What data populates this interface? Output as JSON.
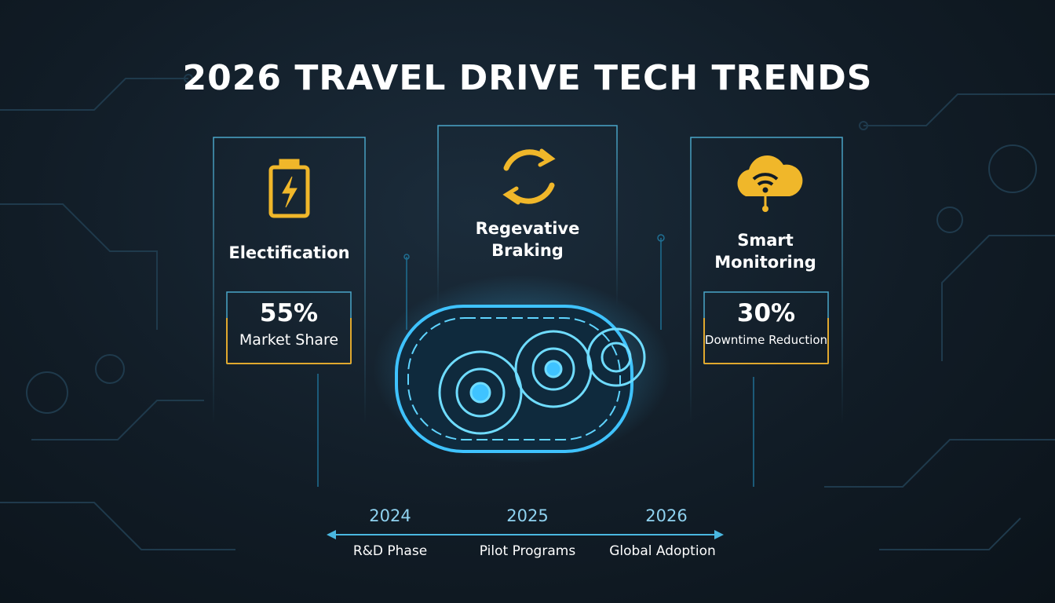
{
  "header": {
    "title": "2026 TRAVEL DRIVE TECH TRENDS"
  },
  "cards": [
    {
      "title": "Electification",
      "stat": "55%",
      "stat_label": "Market Share"
    },
    {
      "title": "Regevative Braking"
    },
    {
      "title": "Smart Monitoring",
      "stat": "30%",
      "stat_label": "Downtime Reduction"
    }
  ],
  "timeline": [
    {
      "year": "2024",
      "label": "R&D Phase"
    },
    {
      "year": "2025",
      "label": "Pilot Programs"
    },
    {
      "year": "2026",
      "label": "Global Adoption"
    }
  ]
}
